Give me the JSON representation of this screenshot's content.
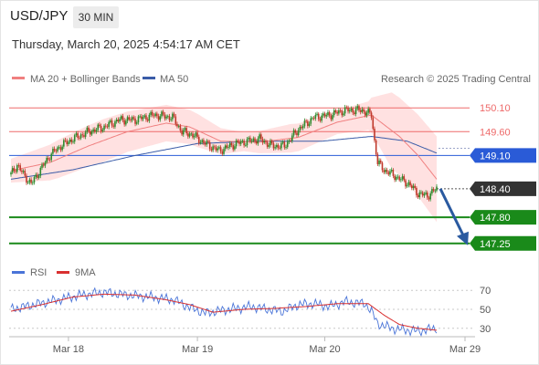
{
  "header": {
    "symbol": "USD/JPY",
    "timeframe": "30 MIN",
    "datetime": "Thursday, March 20, 2025 4:54:17 AM CET"
  },
  "legend": {
    "ma20": "MA 20 + Bollinger Bands",
    "ma50": "MA 50",
    "copyright": "Research © 2025 Trading Central",
    "rsi": "RSI",
    "ma9": "9MA"
  },
  "colors": {
    "ma20": "#f08080",
    "bollinger": "#ffdede",
    "ma50": "#3a5ca8",
    "resistance": "#ee6a6a",
    "pivot": "#2a5bd7",
    "support": "#1a8a1a",
    "current": "#333333",
    "up_candle": "#2e8b2e",
    "down_candle": "#c0392b",
    "arrow": "#2a5aa0",
    "rsi": "#4a74d8",
    "rsi_ma": "#d93030"
  },
  "chart_data": [
    {
      "type": "candlestick",
      "series_name": "USD/JPY 30 MIN",
      "ylim": [
        146.9,
        150.45
      ],
      "levels": [
        {
          "label": "150.10",
          "value": 150.1,
          "kind": "resistance"
        },
        {
          "label": "149.60",
          "value": 149.6,
          "kind": "resistance"
        },
        {
          "label": "149.10",
          "value": 149.1,
          "kind": "pivot"
        },
        {
          "label": "148.40",
          "value": 148.4,
          "kind": "current"
        },
        {
          "label": "147.80",
          "value": 147.8,
          "kind": "support"
        },
        {
          "label": "147.25",
          "value": 147.25,
          "kind": "support"
        }
      ],
      "close_waypoints": [
        [
          0,
          148.7
        ],
        [
          4,
          148.9
        ],
        [
          8,
          148.7
        ],
        [
          13,
          148.5
        ],
        [
          19,
          148.8
        ],
        [
          25,
          149.1
        ],
        [
          32,
          149.3
        ],
        [
          40,
          149.45
        ],
        [
          50,
          149.6
        ],
        [
          60,
          149.7
        ],
        [
          70,
          149.85
        ],
        [
          80,
          149.85
        ],
        [
          92,
          149.95
        ],
        [
          104,
          149.9
        ],
        [
          110,
          149.6
        ],
        [
          116,
          149.55
        ],
        [
          125,
          149.35
        ],
        [
          134,
          149.2
        ],
        [
          145,
          149.35
        ],
        [
          160,
          149.45
        ],
        [
          168,
          149.3
        ],
        [
          176,
          149.3
        ],
        [
          185,
          149.65
        ],
        [
          195,
          149.9
        ],
        [
          205,
          149.95
        ],
        [
          215,
          150.05
        ],
        [
          226,
          150.05
        ],
        [
          232,
          149.95
        ],
        [
          234,
          149.4
        ],
        [
          236,
          148.95
        ],
        [
          240,
          148.8
        ],
        [
          248,
          148.65
        ],
        [
          256,
          148.5
        ],
        [
          262,
          148.3
        ],
        [
          268,
          148.25
        ],
        [
          274,
          148.4
        ]
      ],
      "ma20_waypoints": [
        [
          0,
          148.78
        ],
        [
          25,
          148.95
        ],
        [
          50,
          149.3
        ],
        [
          75,
          149.6
        ],
        [
          100,
          149.78
        ],
        [
          115,
          149.7
        ],
        [
          135,
          149.4
        ],
        [
          160,
          149.38
        ],
        [
          185,
          149.48
        ],
        [
          210,
          149.8
        ],
        [
          232,
          149.95
        ],
        [
          250,
          149.5
        ],
        [
          262,
          149.1
        ],
        [
          274,
          148.6
        ]
      ],
      "bollinger_halfwidth_waypoints": [
        [
          0,
          0.25
        ],
        [
          30,
          0.4
        ],
        [
          60,
          0.45
        ],
        [
          90,
          0.4
        ],
        [
          120,
          0.35
        ],
        [
          150,
          0.2
        ],
        [
          180,
          0.3
        ],
        [
          210,
          0.25
        ],
        [
          230,
          0.3
        ],
        [
          245,
          0.8
        ],
        [
          274,
          0.9
        ]
      ],
      "ma50_waypoints": [
        [
          0,
          148.6
        ],
        [
          40,
          148.8
        ],
        [
          80,
          149.1
        ],
        [
          120,
          149.35
        ],
        [
          160,
          149.4
        ],
        [
          200,
          149.4
        ],
        [
          232,
          149.5
        ],
        [
          255,
          149.4
        ],
        [
          274,
          149.15
        ]
      ],
      "projection": {
        "from": 148.4,
        "to": 147.25
      }
    },
    {
      "type": "line",
      "series_name": "RSI",
      "ylim": [
        25,
        75
      ],
      "yticks": [
        70,
        50,
        30
      ],
      "rsi_waypoints": [
        [
          0,
          50
        ],
        [
          15,
          55
        ],
        [
          30,
          60
        ],
        [
          45,
          65
        ],
        [
          60,
          68
        ],
        [
          75,
          65
        ],
        [
          90,
          63
        ],
        [
          105,
          60
        ],
        [
          115,
          52
        ],
        [
          125,
          46
        ],
        [
          140,
          50
        ],
        [
          155,
          53
        ],
        [
          165,
          50
        ],
        [
          175,
          48
        ],
        [
          185,
          55
        ],
        [
          195,
          56
        ],
        [
          205,
          53
        ],
        [
          215,
          58
        ],
        [
          228,
          56
        ],
        [
          232,
          48
        ],
        [
          236,
          35
        ],
        [
          245,
          30
        ],
        [
          255,
          28
        ],
        [
          262,
          27
        ],
        [
          274,
          30
        ]
      ],
      "ma9_waypoints": [
        [
          0,
          48
        ],
        [
          20,
          55
        ],
        [
          40,
          63
        ],
        [
          60,
          66
        ],
        [
          80,
          65
        ],
        [
          100,
          60
        ],
        [
          115,
          55
        ],
        [
          130,
          47
        ],
        [
          150,
          50
        ],
        [
          170,
          51
        ],
        [
          190,
          53
        ],
        [
          210,
          56
        ],
        [
          230,
          56
        ],
        [
          240,
          44
        ],
        [
          250,
          34
        ],
        [
          262,
          30
        ],
        [
          274,
          28
        ]
      ]
    }
  ],
  "x_axis": {
    "ticks": [
      {
        "label": "Mar 18",
        "bar": 37
      },
      {
        "label": "Mar 19",
        "bar": 120
      },
      {
        "label": "Mar 20",
        "bar": 202
      },
      {
        "label": "Mar 29",
        "bar": 230
      }
    ]
  }
}
